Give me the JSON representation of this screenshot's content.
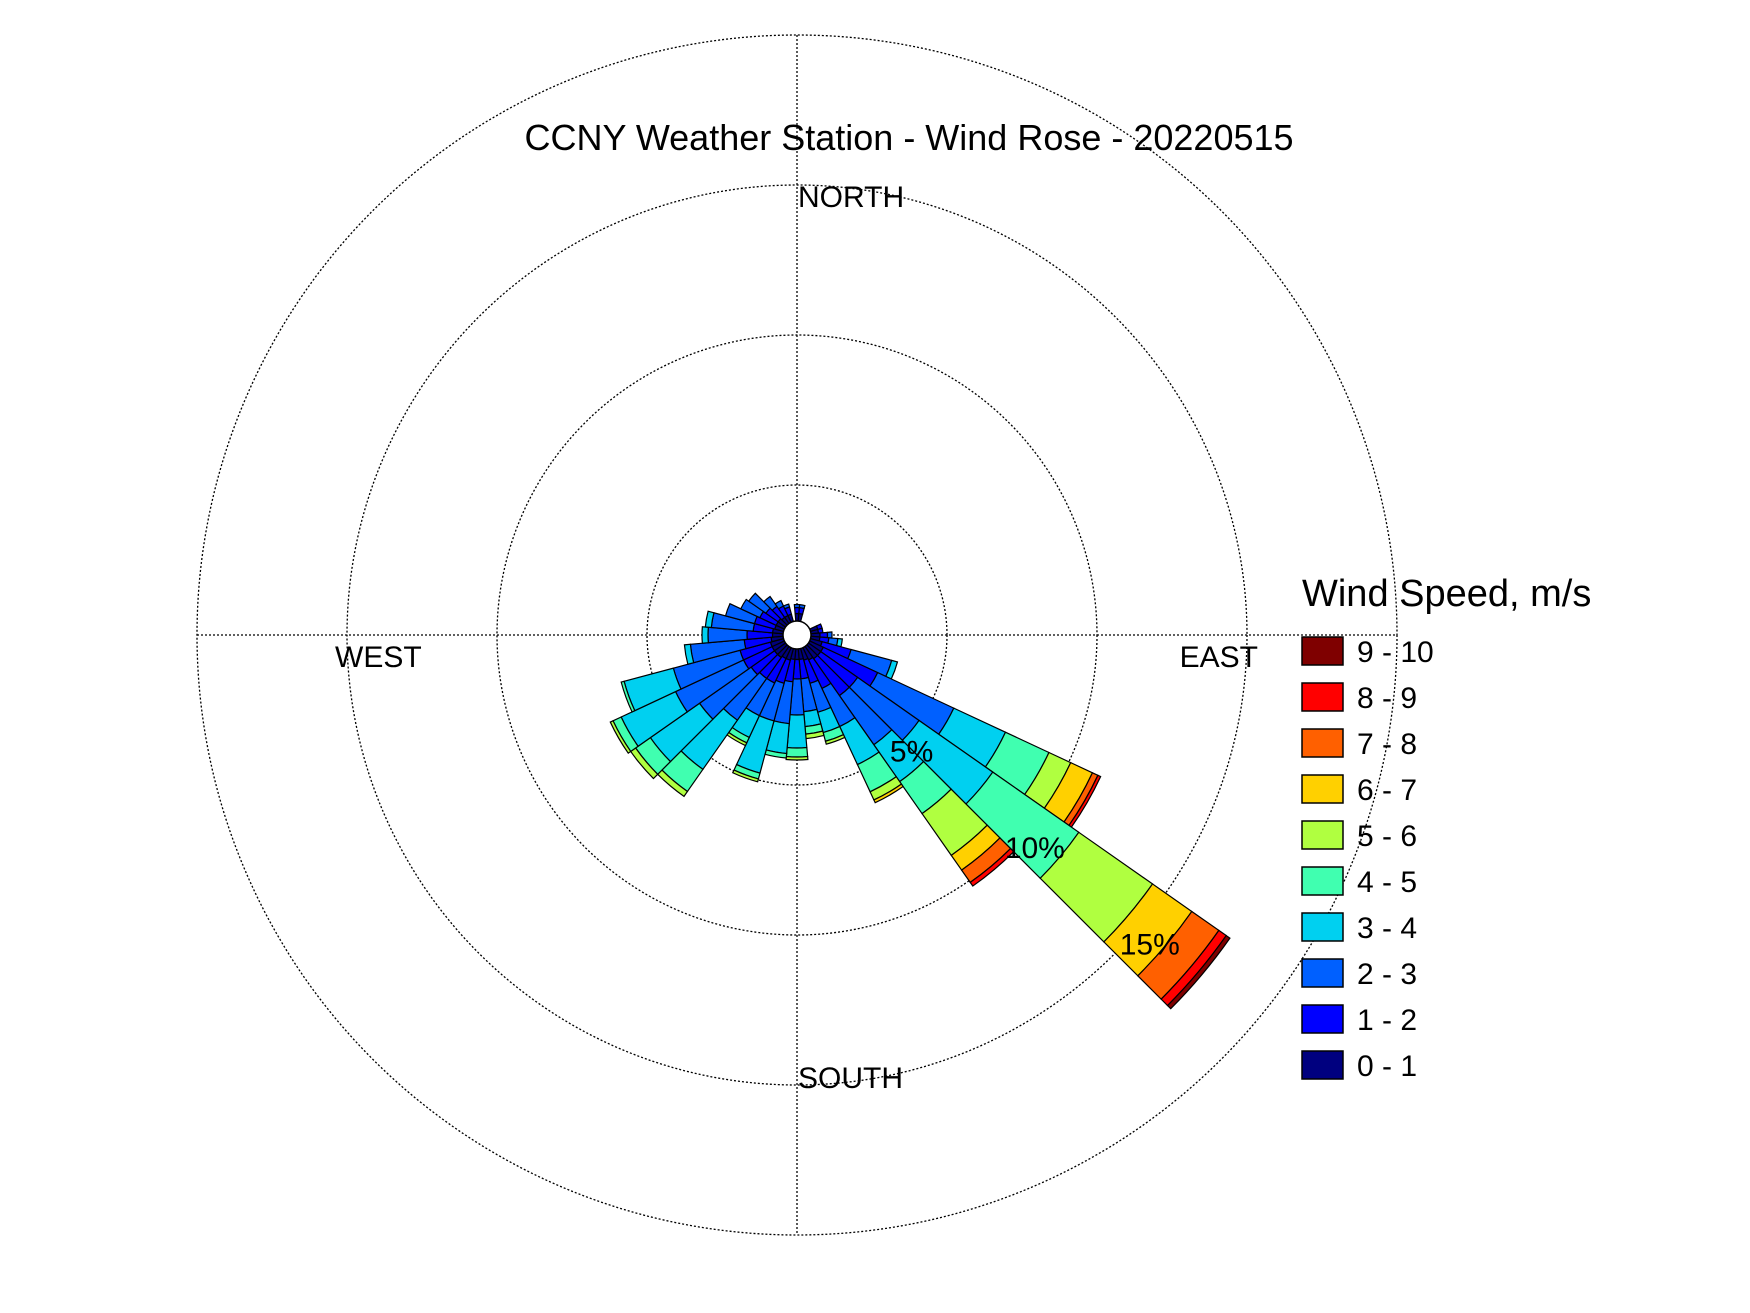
{
  "chart_data": {
    "type": "wind-rose",
    "title": "CCNY Weather Station - Wind Rose - 20220515",
    "directions": [
      "NORTH",
      "EAST",
      "SOUTH",
      "WEST"
    ],
    "ring_labels": [
      "5%",
      "10%",
      "15%"
    ],
    "rings": [
      5,
      10,
      15,
      20
    ],
    "legend_title": "Wind Speed, m/s",
    "speed_bins": [
      {
        "label": "0 - 1",
        "color": "#00007f"
      },
      {
        "label": "1 - 2",
        "color": "#0000ff"
      },
      {
        "label": "2 - 3",
        "color": "#0060ff"
      },
      {
        "label": "3 - 4",
        "color": "#00d0f0"
      },
      {
        "label": "4 - 5",
        "color": "#40ffb0"
      },
      {
        "label": "5 - 6",
        "color": "#b0ff40"
      },
      {
        "label": "6 - 7",
        "color": "#ffd000"
      },
      {
        "label": "7 - 8",
        "color": "#ff6000"
      },
      {
        "label": "8 - 9",
        "color": "#ff0000"
      },
      {
        "label": "9 - 10",
        "color": "#7f0000"
      }
    ],
    "sector_width_deg": 10,
    "sectors": [
      {
        "direction_deg": 0,
        "cumulative_percent": [
          0.25,
          0.45,
          0.55
        ]
      },
      {
        "direction_deg": 10,
        "cumulative_percent": [
          0.25,
          0.45,
          0.55
        ]
      },
      {
        "direction_deg": 70,
        "cumulative_percent": [
          0.25,
          0.4
        ]
      },
      {
        "direction_deg": 80,
        "cumulative_percent": [
          0.25,
          0.4
        ]
      },
      {
        "direction_deg": 90,
        "cumulative_percent": [
          0.3,
          0.55,
          0.7
        ]
      },
      {
        "direction_deg": 100,
        "cumulative_percent": [
          0.3,
          0.6,
          0.9,
          1.05
        ]
      },
      {
        "direction_deg": 110,
        "cumulative_percent": [
          0.4,
          1.4,
          2.8,
          3.0
        ]
      },
      {
        "direction_deg": 120,
        "cumulative_percent": [
          0.5,
          2.5,
          5.3,
          7.2,
          8.8,
          9.6,
          10.4,
          10.6,
          10.7
        ]
      },
      {
        "direction_deg": 130,
        "cumulative_percent": [
          0.5,
          2.0,
          4.5,
          7.5,
          11.0,
          14.0,
          15.6,
          16.7,
          17.0,
          17.15
        ]
      },
      {
        "direction_deg": 140,
        "cumulative_percent": [
          0.5,
          2.0,
          4.0,
          5.5,
          6.8,
          8.5,
          9.1,
          9.6,
          9.75
        ]
      },
      {
        "direction_deg": 150,
        "cumulative_percent": [
          0.45,
          1.5,
          2.9,
          4.3,
          5.3,
          5.6,
          5.7
        ]
      },
      {
        "direction_deg": 160,
        "cumulative_percent": [
          0.4,
          1.2,
          2.2,
          2.9,
          3.2,
          3.3
        ]
      },
      {
        "direction_deg": 170,
        "cumulative_percent": [
          0.35,
          1.0,
          2.1,
          2.6,
          2.85,
          3.0
        ]
      },
      {
        "direction_deg": 180,
        "cumulative_percent": [
          0.35,
          1.0,
          2.2,
          3.3,
          3.6,
          3.7
        ]
      },
      {
        "direction_deg": 190,
        "cumulative_percent": [
          0.35,
          1.1,
          2.5,
          3.5,
          3.65
        ]
      },
      {
        "direction_deg": 200,
        "cumulative_percent": [
          0.4,
          1.2,
          2.5,
          4.3,
          4.5,
          4.6
        ]
      },
      {
        "direction_deg": 210,
        "cumulative_percent": [
          0.4,
          1.3,
          2.5,
          3.3,
          3.5,
          3.6
        ]
      },
      {
        "direction_deg": 220,
        "cumulative_percent": [
          0.45,
          1.3,
          3.0,
          5.0,
          5.9,
          6.1
        ]
      },
      {
        "direction_deg": 230,
        "cumulative_percent": [
          0.45,
          1.4,
          3.5,
          5.5,
          6.1,
          6.3
        ]
      },
      {
        "direction_deg": 240,
        "cumulative_percent": [
          0.45,
          1.5,
          4.0,
          6.0,
          6.3,
          6.4
        ]
      },
      {
        "direction_deg": 250,
        "cumulative_percent": [
          0.45,
          1.5,
          3.8,
          5.5,
          5.6
        ]
      },
      {
        "direction_deg": 260,
        "cumulative_percent": [
          0.4,
          1.3,
          3.1,
          3.3
        ]
      },
      {
        "direction_deg": 270,
        "cumulative_percent": [
          0.35,
          1.2,
          2.5,
          2.7
        ]
      },
      {
        "direction_deg": 280,
        "cumulative_percent": [
          0.35,
          1.0,
          2.4,
          2.6
        ]
      },
      {
        "direction_deg": 290,
        "cumulative_percent": [
          0.3,
          1.0,
          2.0
        ]
      },
      {
        "direction_deg": 300,
        "cumulative_percent": [
          0.3,
          0.9,
          1.6
        ]
      },
      {
        "direction_deg": 310,
        "cumulative_percent": [
          0.3,
          0.8,
          1.5
        ]
      },
      {
        "direction_deg": 320,
        "cumulative_percent": [
          0.25,
          0.7,
          1.1
        ]
      },
      {
        "direction_deg": 330,
        "cumulative_percent": [
          0.25,
          0.6,
          0.8
        ]
      },
      {
        "direction_deg": 340,
        "cumulative_percent": [
          0.25,
          0.5,
          0.6
        ]
      }
    ]
  }
}
